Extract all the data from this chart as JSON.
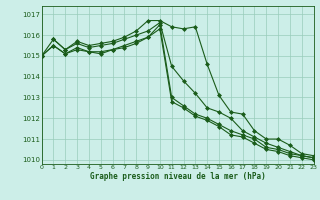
{
  "title": "Graphe pression niveau de la mer (hPa)",
  "background_color": "#cceee8",
  "grid_color": "#99ccbb",
  "line_color": "#1a5c1a",
  "xlim": [
    0,
    23
  ],
  "ylim": [
    1009.8,
    1017.4
  ],
  "yticks": [
    1010,
    1011,
    1012,
    1013,
    1014,
    1015,
    1016,
    1017
  ],
  "xticks": [
    0,
    1,
    2,
    3,
    4,
    5,
    6,
    7,
    8,
    9,
    10,
    11,
    12,
    13,
    14,
    15,
    16,
    17,
    18,
    19,
    20,
    21,
    22,
    23
  ],
  "series": [
    {
      "x": [
        0,
        1,
        2,
        3,
        4,
        5,
        6,
        7,
        8,
        9,
        10,
        11,
        12,
        13,
        14,
        15,
        16,
        17,
        18,
        19,
        20,
        21,
        22,
        23
      ],
      "y": [
        1015.0,
        1015.8,
        1015.3,
        1015.7,
        1015.5,
        1015.6,
        1015.7,
        1015.9,
        1016.2,
        1016.7,
        1016.7,
        1016.4,
        1016.3,
        1016.4,
        1014.6,
        1013.1,
        1012.3,
        1012.2,
        1011.4,
        1011.0,
        1011.0,
        1010.7,
        1010.3,
        1010.2
      ]
    },
    {
      "x": [
        1,
        2,
        3,
        4,
        5,
        6,
        7,
        8,
        9,
        10,
        11,
        12,
        13,
        14,
        15,
        16,
        17,
        18,
        19,
        20,
        21,
        22,
        23
      ],
      "y": [
        1015.8,
        1015.3,
        1015.6,
        1015.4,
        1015.5,
        1015.6,
        1015.8,
        1016.0,
        1016.2,
        1016.6,
        1014.5,
        1013.8,
        1013.2,
        1012.5,
        1012.3,
        1012.0,
        1011.4,
        1011.1,
        1010.8,
        1010.6,
        1010.4,
        1010.2,
        1010.1
      ]
    },
    {
      "x": [
        0,
        1,
        2,
        3,
        4,
        5,
        6,
        7,
        8,
        9,
        10,
        11,
        12,
        13,
        14,
        15,
        16,
        17,
        18,
        19,
        20,
        21,
        22,
        23
      ],
      "y": [
        1015.0,
        1015.5,
        1015.1,
        1015.4,
        1015.2,
        1015.2,
        1015.3,
        1015.5,
        1015.7,
        1015.9,
        1016.5,
        1013.0,
        1012.6,
        1012.2,
        1012.0,
        1011.7,
        1011.4,
        1011.2,
        1011.0,
        1010.6,
        1010.5,
        1010.3,
        1010.2,
        1010.1
      ]
    },
    {
      "x": [
        0,
        1,
        2,
        3,
        4,
        5,
        6,
        7,
        8,
        9,
        10,
        11,
        12,
        13,
        14,
        15,
        16,
        17,
        18,
        19,
        20,
        21,
        22,
        23
      ],
      "y": [
        1015.0,
        1015.5,
        1015.1,
        1015.3,
        1015.2,
        1015.1,
        1015.3,
        1015.4,
        1015.6,
        1015.9,
        1016.3,
        1012.8,
        1012.5,
        1012.1,
        1011.9,
        1011.6,
        1011.2,
        1011.1,
        1010.8,
        1010.5,
        1010.4,
        1010.2,
        1010.1,
        1010.0
      ]
    }
  ]
}
